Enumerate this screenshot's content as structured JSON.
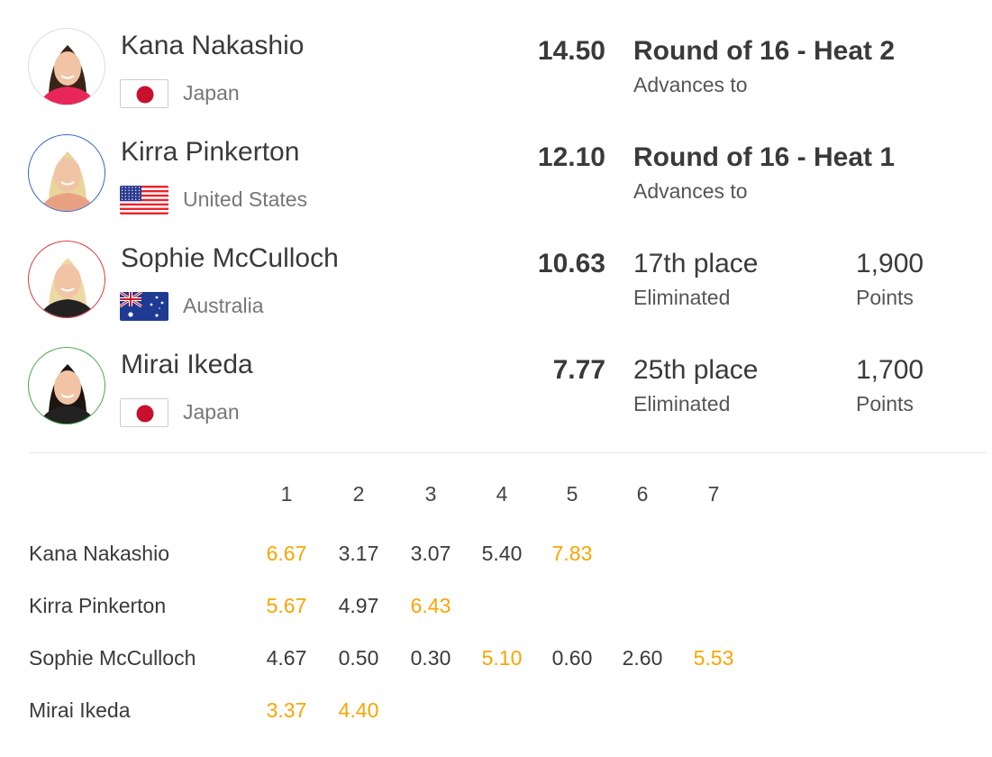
{
  "colors": {
    "highlight": "#f7a600",
    "text": "#3a3a3a",
    "muted": "#777777"
  },
  "athletes": [
    {
      "name": "Kana Nakashio",
      "country": "Japan",
      "flag": "japan-flag",
      "score": "14.50",
      "result": "Round of 16 - Heat 2",
      "result_sub": "Advances to",
      "result_bold": true,
      "points": "",
      "points_label": "",
      "avatar_border": "#dddddd",
      "jersey": "#e8265a",
      "hair": "#3a2418"
    },
    {
      "name": "Kirra Pinkerton",
      "country": "United States",
      "flag": "usa-flag",
      "score": "12.10",
      "result": "Round of 16 - Heat 1",
      "result_sub": "Advances to",
      "result_bold": true,
      "points": "",
      "points_label": "",
      "avatar_border": "#3366cc",
      "jersey": "#e8a283",
      "hair": "#e9d59a"
    },
    {
      "name": "Sophie McCulloch",
      "country": "Australia",
      "flag": "australia-flag",
      "score": "10.63",
      "result": "17th place",
      "result_sub": "Eliminated",
      "result_bold": false,
      "points": "1,900",
      "points_label": "Points",
      "avatar_border": "#d83a3a",
      "jersey": "#222222",
      "hair": "#ecd9a4"
    },
    {
      "name": "Mirai Ikeda",
      "country": "Japan",
      "flag": "japan-flag",
      "score": "7.77",
      "result": "25th place",
      "result_sub": "Eliminated",
      "result_bold": false,
      "points": "1,700",
      "points_label": "Points",
      "avatar_border": "#4aa84a",
      "jersey": "#222222",
      "hair": "#1e1410"
    }
  ],
  "heat_table": {
    "wave_numbers": [
      "1",
      "2",
      "3",
      "4",
      "5",
      "6",
      "7"
    ],
    "rows": [
      {
        "name": "Kana Nakashio",
        "waves": [
          {
            "v": "6.67",
            "counted": true
          },
          {
            "v": "3.17",
            "counted": false
          },
          {
            "v": "3.07",
            "counted": false
          },
          {
            "v": "5.40",
            "counted": false
          },
          {
            "v": "7.83",
            "counted": true
          }
        ]
      },
      {
        "name": "Kirra Pinkerton",
        "waves": [
          {
            "v": "5.67",
            "counted": true
          },
          {
            "v": "4.97",
            "counted": false
          },
          {
            "v": "6.43",
            "counted": true
          }
        ]
      },
      {
        "name": "Sophie McCulloch",
        "waves": [
          {
            "v": "4.67",
            "counted": false
          },
          {
            "v": "0.50",
            "counted": false
          },
          {
            "v": "0.30",
            "counted": false
          },
          {
            "v": "5.10",
            "counted": true
          },
          {
            "v": "0.60",
            "counted": false
          },
          {
            "v": "2.60",
            "counted": false
          },
          {
            "v": "5.53",
            "counted": true
          }
        ]
      },
      {
        "name": "Mirai Ikeda",
        "waves": [
          {
            "v": "3.37",
            "counted": true
          },
          {
            "v": "4.40",
            "counted": true
          }
        ]
      }
    ]
  }
}
